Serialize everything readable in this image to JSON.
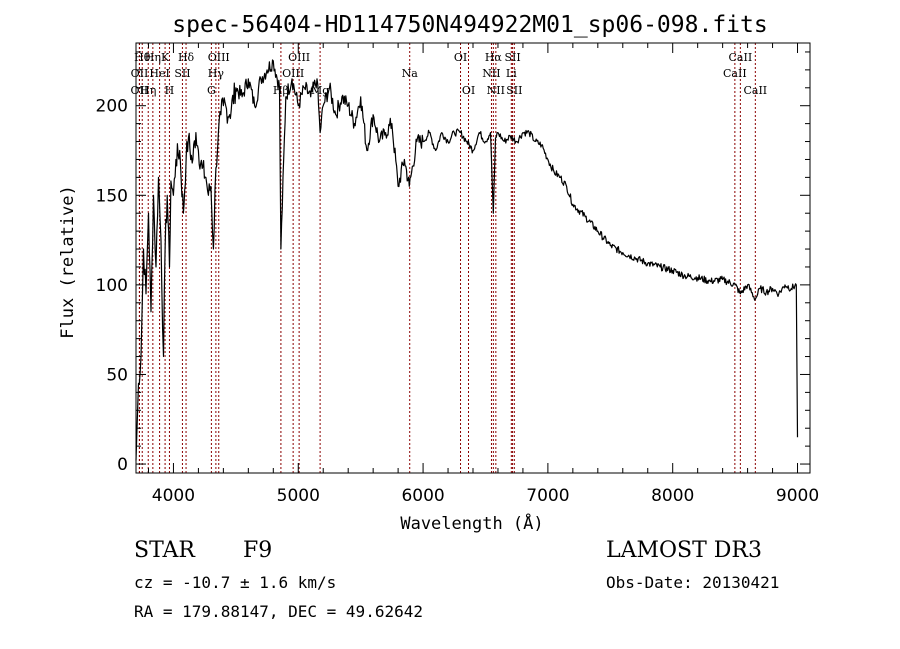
{
  "chart_data": {
    "type": "line",
    "title": "spec-56404-HD114750N494922M01_sp06-098.fits",
    "xlabel": "Wavelength (Å)",
    "ylabel": "Flux (relative)",
    "xlim": [
      3700,
      9100
    ],
    "ylim": [
      -5,
      235
    ],
    "xticks": [
      4000,
      5000,
      6000,
      7000,
      8000,
      9000
    ],
    "yticks": [
      0,
      50,
      100,
      150,
      200
    ],
    "grid": false,
    "line_color": "#000000",
    "marker_color": "#8b0000",
    "series": [
      {
        "name": "spectrum",
        "x": [
          3700,
          3720,
          3740,
          3760,
          3780,
          3800,
          3820,
          3840,
          3860,
          3880,
          3900,
          3920,
          3933,
          3950,
          3968,
          3980,
          4000,
          4020,
          4050,
          4080,
          4101,
          4120,
          4150,
          4180,
          4200,
          4230,
          4260,
          4280,
          4300,
          4320,
          4340,
          4360,
          4380,
          4400,
          4450,
          4500,
          4550,
          4600,
          4650,
          4700,
          4750,
          4800,
          4850,
          4861,
          4900,
          4950,
          5000,
          5050,
          5100,
          5150,
          5175,
          5200,
          5250,
          5300,
          5350,
          5400,
          5450,
          5500,
          5550,
          5600,
          5650,
          5700,
          5750,
          5800,
          5850,
          5890,
          5950,
          6000,
          6050,
          6100,
          6150,
          6200,
          6250,
          6300,
          6350,
          6400,
          6450,
          6500,
          6540,
          6563,
          6580,
          6600,
          6650,
          6700,
          6750,
          6800,
          6850,
          6900,
          6950,
          7000,
          7050,
          7100,
          7150,
          7200,
          7300,
          7400,
          7500,
          7600,
          7700,
          7800,
          7900,
          8000,
          8100,
          8200,
          8300,
          8400,
          8500,
          8542,
          8600,
          8662,
          8700,
          8750,
          8800,
          8850,
          8900,
          8950,
          8990,
          9000
        ],
        "values": [
          2,
          45,
          60,
          120,
          95,
          140,
          85,
          150,
          110,
          160,
          125,
          60,
          120,
          150,
          110,
          158,
          150,
          170,
          175,
          140,
          170,
          182,
          168,
          185,
          175,
          165,
          160,
          150,
          155,
          120,
          165,
          185,
          195,
          200,
          195,
          210,
          205,
          215,
          200,
          215,
          220,
          225,
          210,
          120,
          205,
          215,
          200,
          210,
          205,
          215,
          185,
          200,
          210,
          195,
          205,
          200,
          190,
          205,
          175,
          195,
          180,
          185,
          190,
          155,
          170,
          155,
          180,
          180,
          185,
          175,
          185,
          180,
          185,
          185,
          180,
          175,
          185,
          180,
          185,
          140,
          182,
          185,
          180,
          183,
          180,
          185,
          185,
          180,
          178,
          170,
          163,
          160,
          155,
          145,
          138,
          130,
          122,
          118,
          115,
          112,
          110,
          108,
          105,
          104,
          102,
          103,
          100,
          95,
          100,
          92,
          98,
          96,
          98,
          95,
          100,
          98,
          100,
          15
        ]
      }
    ],
    "line_markers": [
      {
        "wavelength": 3750,
        "label": "Hθ",
        "row": 0
      },
      {
        "wavelength": 3728,
        "label": "OII",
        "row": 1
      },
      {
        "wavelength": 3727,
        "label": "OII",
        "row": 2
      },
      {
        "wavelength": 3798,
        "label": "Hη",
        "row": 2
      },
      {
        "wavelength": 3835,
        "label": "Hη",
        "row": 0
      },
      {
        "wavelength": 3889,
        "label": "HeI",
        "row": 1
      },
      {
        "wavelength": 3933,
        "label": "K",
        "row": 0
      },
      {
        "wavelength": 3968,
        "label": "H",
        "row": 2
      },
      {
        "wavelength": 4072,
        "label": "SII",
        "row": 1
      },
      {
        "wavelength": 4101,
        "label": "Hδ",
        "row": 0
      },
      {
        "wavelength": 4304,
        "label": "G",
        "row": 2
      },
      {
        "wavelength": 4340,
        "label": "Hγ",
        "row": 1
      },
      {
        "wavelength": 4363,
        "label": "OIII",
        "row": 0
      },
      {
        "wavelength": 4861,
        "label": "Hβ",
        "row": 2
      },
      {
        "wavelength": 4959,
        "label": "OIII",
        "row": 1
      },
      {
        "wavelength": 5007,
        "label": "OIII",
        "row": 0
      },
      {
        "wavelength": 5175,
        "label": "Mg",
        "row": 2
      },
      {
        "wavelength": 5893,
        "label": "Na",
        "row": 1
      },
      {
        "wavelength": 6300,
        "label": "OI",
        "row": 0
      },
      {
        "wavelength": 6364,
        "label": "OI",
        "row": 2
      },
      {
        "wavelength": 6548,
        "label": "NII",
        "row": 1
      },
      {
        "wavelength": 6563,
        "label": "Hα",
        "row": 0
      },
      {
        "wavelength": 6583,
        "label": "NII",
        "row": 2
      },
      {
        "wavelength": 6707,
        "label": "Li",
        "row": 1
      },
      {
        "wavelength": 6717,
        "label": "SII",
        "row": 0
      },
      {
        "wavelength": 6731,
        "label": "SII",
        "row": 2
      },
      {
        "wavelength": 8498,
        "label": "CaII",
        "row": 1
      },
      {
        "wavelength": 8542,
        "label": "CaII",
        "row": 0
      },
      {
        "wavelength": 8662,
        "label": "CaII",
        "row": 2
      }
    ]
  },
  "info": {
    "object_class": "STAR",
    "subclass": "F9",
    "redshift": "cz = -10.7 ± 1.6 km/s",
    "coordinates": "RA = 179.88147, DEC =  49.62642",
    "survey": "LAMOST DR3",
    "obs_date": "Obs-Date: 20130421"
  }
}
